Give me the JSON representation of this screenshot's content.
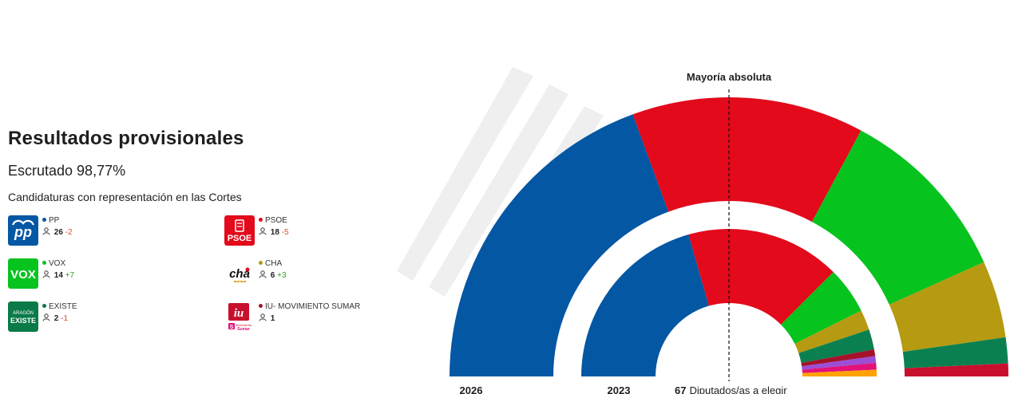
{
  "header": {
    "title": "Resultados provisionales",
    "scrutiny": "Escrutado 98,77%",
    "subtitle": "Candidaturas con representación en las Cortes"
  },
  "parties": [
    {
      "name": "PP",
      "seats": "26",
      "change": "-2",
      "color": "#0457a3",
      "logo_text": "pp",
      "logo": "pp-logo"
    },
    {
      "name": "PSOE",
      "seats": "18",
      "change": "-5",
      "color": "#e20a1b",
      "logo_text": "PSOE",
      "logo": "psoe-logo"
    },
    {
      "name": "VOX",
      "seats": "14",
      "change": "+7",
      "color": "#07c31e",
      "logo_text": "VOX",
      "logo": "vox-logo"
    },
    {
      "name": "CHA",
      "seats": "6",
      "change": "+3",
      "color": "#b59a12",
      "logo_text": "cha",
      "logo": "cha-logo"
    },
    {
      "name": "EXISTE",
      "seats": "2",
      "change": "-1",
      "color": "#0a7a48",
      "logo_text": "ARAGÓN EXISTE",
      "logo": "existe-logo"
    },
    {
      "name": "IU- MOVIMIENTO SUMAR",
      "seats": "1",
      "change": "",
      "color": "#a5122b",
      "logo_text": "iu",
      "logo": "iu-logo"
    }
  ],
  "chart_data": {
    "type": "pie",
    "total_label": "67 Diputados/as a elegir",
    "total_number": "67",
    "total_text": "Diputados/as a elegir",
    "majority_label": "Mayoría absoluta",
    "majority_seats": 34,
    "rings": [
      {
        "label": "2026",
        "segments": [
          {
            "name": "PP",
            "value": 26,
            "color": "#0457a3"
          },
          {
            "name": "PSOE",
            "value": 18,
            "color": "#e20a1b"
          },
          {
            "name": "VOX",
            "value": 14,
            "color": "#07c31e"
          },
          {
            "name": "CHA",
            "value": 6,
            "color": "#b59a12"
          },
          {
            "name": "EXISTE",
            "value": 2,
            "color": "#0a8050"
          },
          {
            "name": "IU- MOVIMIENTO SUMAR",
            "value": 1,
            "color": "#c8102e"
          }
        ]
      },
      {
        "label": "2023",
        "segments": [
          {
            "name": "PP",
            "value": 28,
            "color": "#0457a3"
          },
          {
            "name": "PSOE",
            "value": 23,
            "color": "#e20a1b"
          },
          {
            "name": "VOX",
            "value": 7,
            "color": "#07c31e"
          },
          {
            "name": "CHA",
            "value": 3,
            "color": "#b59a12"
          },
          {
            "name": "EXISTE",
            "value": 3,
            "color": "#0a8050"
          },
          {
            "name": "IU- MOVIMIENTO SUMAR",
            "value": 1,
            "color": "#a5122b"
          },
          {
            "name": "",
            "value": 1,
            "color": "#9b4fd6"
          },
          {
            "name": "",
            "value": 1,
            "color": "#e2127a"
          },
          {
            "name": "",
            "value": 1,
            "color": "#ffa200"
          }
        ]
      }
    ]
  }
}
